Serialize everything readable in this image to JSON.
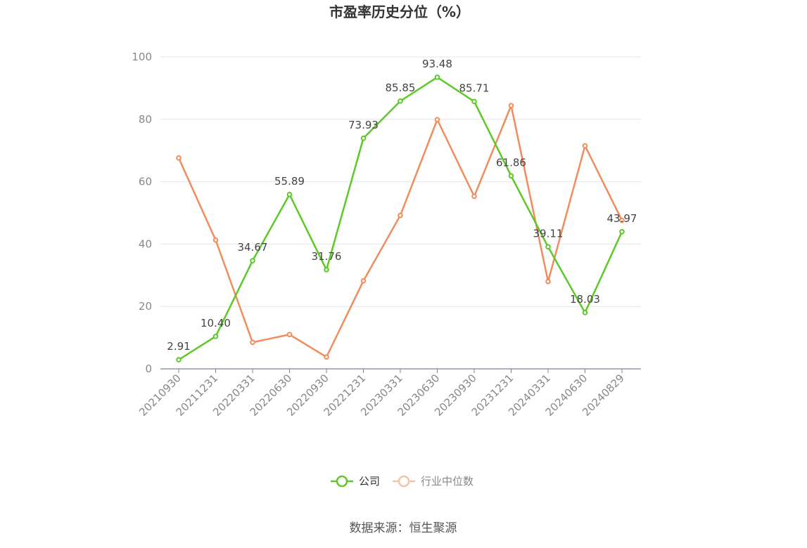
{
  "chart_data": {
    "type": "line",
    "title": "市盈率历史分位（%）",
    "categories": [
      "20210930",
      "20211231",
      "20220331",
      "20220630",
      "20220930",
      "20221231",
      "20230331",
      "20230630",
      "20230930",
      "20231231",
      "20240331",
      "20240630",
      "20240829"
    ],
    "series": [
      {
        "name": "公司",
        "color": "#5dc928",
        "values": [
          2.91,
          10.4,
          34.67,
          55.89,
          31.76,
          73.93,
          85.85,
          93.48,
          85.71,
          61.86,
          39.11,
          18.03,
          43.97
        ],
        "labels": [
          "2.91",
          "10.40",
          "34.67",
          "55.89",
          "31.76",
          "73.93",
          "85.85",
          "93.48",
          "85.71",
          "61.86",
          "39.11",
          "18.03",
          "43.97"
        ]
      },
      {
        "name": "行业中位数",
        "color": "#f28c5c",
        "values": [
          67.6,
          41.3,
          8.5,
          11.0,
          3.8,
          28.2,
          49.2,
          79.9,
          55.3,
          84.4,
          28.0,
          71.5,
          47.6
        ]
      }
    ],
    "y_ticks": [
      "0",
      "20",
      "40",
      "60",
      "80",
      "100"
    ],
    "ylim": [
      0,
      100
    ],
    "grid": true,
    "legend_position": "bottom-center"
  },
  "source_text": "数据来源：恒生聚源"
}
